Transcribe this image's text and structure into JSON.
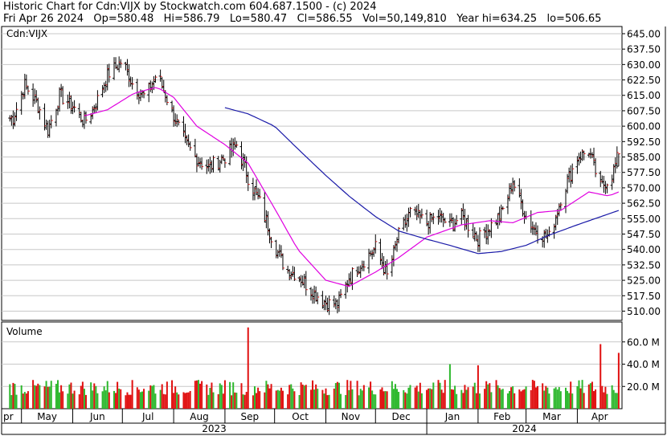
{
  "header": {
    "line1": "Historic Chart for Cdn:VIJX by Stockwatch.com 604.687.1500 - (c) 2024",
    "line2": "Fri Apr 26 2024   Op=580.48   Hi=586.79   Lo=580.47   Cl=586.55   Vol=50,149,810   Year hi=634.25   lo=506.65"
  },
  "colors": {
    "up_bar": "#2db82d",
    "down_bar": "#e01010",
    "price_tick": "#000000",
    "ma_short": "#e000e0",
    "ma_long": "#1a1aa8",
    "grid": "#c8c8c8"
  },
  "chart_data": [
    {
      "type": "candlestick",
      "label": "Cdn:VIJX",
      "y_ticks": [
        "645.00",
        "637.50",
        "630.00",
        "622.50",
        "615.00",
        "607.50",
        "600.00",
        "592.50",
        "585.00",
        "577.50",
        "570.00",
        "562.50",
        "555.00",
        "547.50",
        "540.00",
        "532.50",
        "525.00",
        "517.50",
        "510.00"
      ],
      "ylim": [
        504,
        648
      ],
      "latest": {
        "open": 580.48,
        "high": 586.79,
        "low": 580.47,
        "close": 586.55
      },
      "anchors": [
        [
          "2023-04-26",
          604
        ],
        [
          "2023-05-03",
          620
        ],
        [
          "2023-05-10",
          612
        ],
        [
          "2023-05-17",
          598
        ],
        [
          "2023-05-24",
          615
        ],
        [
          "2023-06-01",
          610
        ],
        [
          "2023-06-08",
          602
        ],
        [
          "2023-06-15",
          611
        ],
        [
          "2023-06-22",
          625
        ],
        [
          "2023-07-01",
          632
        ],
        [
          "2023-07-08",
          619
        ],
        [
          "2023-07-15",
          614
        ],
        [
          "2023-07-22",
          626
        ],
        [
          "2023-08-01",
          605
        ],
        [
          "2023-08-08",
          592
        ],
        [
          "2023-08-15",
          584
        ],
        [
          "2023-08-22",
          580
        ],
        [
          "2023-09-01",
          585
        ],
        [
          "2023-09-08",
          591
        ],
        [
          "2023-09-15",
          575
        ],
        [
          "2023-09-22",
          563
        ],
        [
          "2023-10-01",
          542
        ],
        [
          "2023-10-08",
          530
        ],
        [
          "2023-10-15",
          528
        ],
        [
          "2023-10-22",
          521
        ],
        [
          "2023-11-01",
          514
        ],
        [
          "2023-11-08",
          513
        ],
        [
          "2023-11-15",
          526
        ],
        [
          "2023-11-22",
          533
        ],
        [
          "2023-12-01",
          541
        ],
        [
          "2023-12-08",
          527
        ],
        [
          "2023-12-15",
          547
        ],
        [
          "2023-12-22",
          558
        ],
        [
          "2024-01-01",
          553
        ],
        [
          "2024-01-08",
          556
        ],
        [
          "2024-01-15",
          552
        ],
        [
          "2024-01-22",
          556
        ],
        [
          "2024-02-01",
          545
        ],
        [
          "2024-02-08",
          551
        ],
        [
          "2024-02-15",
          557
        ],
        [
          "2024-02-22",
          573
        ],
        [
          "2024-03-01",
          556
        ],
        [
          "2024-03-08",
          548
        ],
        [
          "2024-03-15",
          546
        ],
        [
          "2024-03-22",
          565
        ],
        [
          "2024-04-01",
          585
        ],
        [
          "2024-04-08",
          588
        ],
        [
          "2024-04-15",
          570
        ],
        [
          "2024-04-22",
          576
        ],
        [
          "2024-04-26",
          586.55
        ]
      ],
      "ma_short_anchors": [
        [
          "2023-06-08",
          605
        ],
        [
          "2023-06-22",
          608
        ],
        [
          "2023-07-08",
          616
        ],
        [
          "2023-07-22",
          619
        ],
        [
          "2023-08-01",
          614
        ],
        [
          "2023-08-15",
          600
        ],
        [
          "2023-09-01",
          591
        ],
        [
          "2023-09-15",
          582
        ],
        [
          "2023-10-01",
          560
        ],
        [
          "2023-10-15",
          540
        ],
        [
          "2023-11-01",
          525
        ],
        [
          "2023-11-15",
          522
        ],
        [
          "2023-12-01",
          529
        ],
        [
          "2023-12-15",
          536
        ],
        [
          "2024-01-01",
          546
        ],
        [
          "2024-01-22",
          552
        ],
        [
          "2024-02-08",
          554
        ],
        [
          "2024-02-22",
          553
        ],
        [
          "2024-03-08",
          558
        ],
        [
          "2024-03-22",
          559
        ],
        [
          "2024-04-08",
          568
        ],
        [
          "2024-04-20",
          566
        ],
        [
          "2024-04-26",
          568
        ]
      ],
      "ma_long_anchors": [
        [
          "2023-09-01",
          609
        ],
        [
          "2023-09-15",
          606
        ],
        [
          "2023-10-01",
          600
        ],
        [
          "2023-10-15",
          589
        ],
        [
          "2023-11-01",
          576
        ],
        [
          "2023-11-15",
          566
        ],
        [
          "2023-12-01",
          556
        ],
        [
          "2023-12-15",
          549
        ],
        [
          "2024-01-01",
          545
        ],
        [
          "2024-01-15",
          542
        ],
        [
          "2024-02-01",
          538
        ],
        [
          "2024-02-15",
          539
        ],
        [
          "2024-03-01",
          542
        ],
        [
          "2024-03-15",
          547
        ],
        [
          "2024-04-01",
          552
        ],
        [
          "2024-04-26",
          559
        ]
      ]
    },
    {
      "type": "bar",
      "label": "Volume",
      "y_ticks": [
        "60.0 M",
        "40.0 M",
        "20.0 M"
      ],
      "ylim": [
        0,
        75
      ],
      "latest": 50.15,
      "spikes": [
        [
          "2023-09-15",
          73
        ],
        [
          "2023-10-01",
          35
        ],
        [
          "2024-01-15",
          40
        ],
        [
          "2024-02-01",
          39
        ],
        [
          "2024-04-15",
          58
        ],
        [
          "2024-04-26",
          50.15
        ]
      ]
    }
  ],
  "x_axis": {
    "months": [
      "pr",
      "May",
      "Jun",
      "Jul",
      "Aug",
      "Sep",
      "Oct",
      "Nov",
      "Dec",
      "Jan",
      "Feb",
      "Mar",
      "Apr"
    ],
    "years": [
      "2023",
      "2024"
    ]
  }
}
